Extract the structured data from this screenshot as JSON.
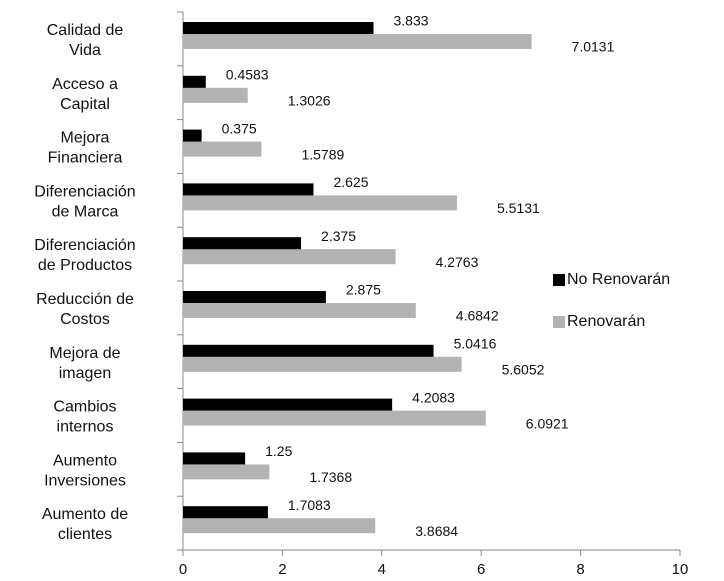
{
  "chart_data": {
    "type": "bar",
    "orientation": "horizontal",
    "categories": [
      [
        "Calidad de",
        "Vida"
      ],
      [
        "Acceso a",
        "Capital"
      ],
      [
        "Mejora",
        "Financiera"
      ],
      [
        "Diferenciación",
        "de Marca"
      ],
      [
        "Diferenciación",
        "de Productos"
      ],
      [
        "Reducción de",
        "Costos"
      ],
      [
        "Mejora de",
        "imagen"
      ],
      [
        "Cambios",
        "internos"
      ],
      [
        "Aumento",
        "Inversiones"
      ],
      [
        "Aumento de",
        "clientes"
      ]
    ],
    "series": [
      {
        "name": "No Renovarán",
        "color": "#000000",
        "values": [
          3.833,
          0.4583,
          0.375,
          2.625,
          2.375,
          2.875,
          5.0416,
          4.2083,
          1.25,
          1.7083
        ]
      },
      {
        "name": "Renovarán",
        "color": "#b3b3b3",
        "values": [
          7.0131,
          1.3026,
          1.5789,
          5.5131,
          4.2763,
          4.6842,
          5.6052,
          6.0921,
          1.7368,
          3.8684
        ]
      }
    ],
    "xlim": [
      0,
      10
    ],
    "xticks": [
      0,
      2,
      4,
      6,
      8,
      10
    ],
    "grid": false,
    "legend": "right"
  }
}
